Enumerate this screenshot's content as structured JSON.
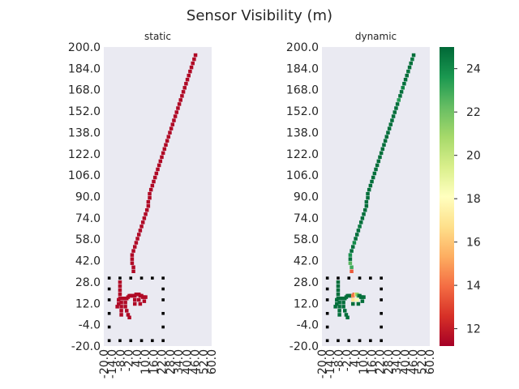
{
  "chart_data": {
    "type": "heatmap",
    "title": "Sensor Visibility (m)",
    "colormap": "RdYlGn",
    "colorbar": {
      "vmin": 11.2,
      "vmax": 25.0,
      "ticks": [
        "12",
        "14",
        "16",
        "18",
        "20",
        "22",
        "24"
      ]
    },
    "x_tick_labels": [
      "-20.0",
      "-14.0",
      "-8.0",
      "-2.0",
      "4.0",
      "10.0",
      "16.0",
      "22.0",
      "28.0",
      "34.0",
      "40.0",
      "46.0",
      "52.0",
      "60.0"
    ],
    "y_tick_labels": [
      "200.0",
      "184.0",
      "168.0",
      "152.0",
      "138.0",
      "122.0",
      "106.0",
      "90.0",
      "74.0",
      "58.0",
      "42.0",
      "28.0",
      "12.0",
      "-4.0",
      "-20.0"
    ],
    "background": "#eaeaf2",
    "marker_points": [
      [
        -16,
        30
      ],
      [
        -8,
        30
      ],
      [
        0,
        30
      ],
      [
        8,
        30
      ],
      [
        16,
        30
      ],
      [
        24,
        30
      ],
      [
        -16,
        22
      ],
      [
        24,
        22
      ],
      [
        -16,
        14
      ],
      [
        24,
        14
      ],
      [
        -16,
        4
      ],
      [
        24,
        4
      ],
      [
        -16,
        -6
      ],
      [
        24,
        -6
      ],
      [
        -16,
        -16
      ],
      [
        -8,
        -16
      ],
      [
        0,
        -16
      ],
      [
        8,
        -16
      ],
      [
        16,
        -16
      ],
      [
        24,
        -16
      ]
    ],
    "panels": [
      {
        "subtitle": "static",
        "cells": [
          [
            48,
            194,
            11.5
          ],
          [
            47,
            191,
            11.5
          ],
          [
            46,
            188,
            11.5
          ],
          [
            45,
            185,
            11.5
          ],
          [
            44,
            182,
            11.5
          ],
          [
            43,
            179,
            11.5
          ],
          [
            42,
            176,
            11.5
          ],
          [
            41,
            173,
            11.5
          ],
          [
            40,
            170,
            11.5
          ],
          [
            39,
            167,
            11.5
          ],
          [
            38,
            164,
            11.5
          ],
          [
            37,
            161,
            11.5
          ],
          [
            36,
            158,
            11.5
          ],
          [
            35,
            155,
            11.5
          ],
          [
            34,
            152,
            11.5
          ],
          [
            33,
            149,
            11.5
          ],
          [
            32,
            146,
            11.5
          ],
          [
            31,
            143,
            11.5
          ],
          [
            30,
            140,
            11.5
          ],
          [
            29,
            137,
            11.5
          ],
          [
            28,
            134,
            11.5
          ],
          [
            27,
            131,
            11.5
          ],
          [
            26,
            128,
            11.5
          ],
          [
            25,
            125,
            11.5
          ],
          [
            24,
            122,
            11.5
          ],
          [
            23,
            119,
            11.5
          ],
          [
            22,
            116,
            11.5
          ],
          [
            21,
            113,
            11.5
          ],
          [
            20,
            110,
            11.5
          ],
          [
            19,
            107,
            11.5
          ],
          [
            18,
            104,
            11.5
          ],
          [
            17,
            101,
            11.5
          ],
          [
            16,
            98,
            11.5
          ],
          [
            15,
            95,
            11.5
          ],
          [
            14,
            92,
            11.5
          ],
          [
            14,
            89,
            11.5
          ],
          [
            13,
            86,
            11.5
          ],
          [
            13,
            83,
            11.5
          ],
          [
            12,
            80,
            11.5
          ],
          [
            11,
            77,
            11.5
          ],
          [
            10,
            74,
            11.5
          ],
          [
            9,
            71,
            11.5
          ],
          [
            8,
            68,
            11.5
          ],
          [
            7,
            65,
            11.5
          ],
          [
            6,
            62,
            11.5
          ],
          [
            5,
            59,
            11.5
          ],
          [
            4,
            56,
            11.5
          ],
          [
            3,
            53,
            11.5
          ],
          [
            2,
            50,
            11.5
          ],
          [
            1,
            47,
            11.5
          ],
          [
            1,
            44,
            11.5
          ],
          [
            1,
            41,
            11.5
          ],
          [
            2,
            38,
            11.5
          ],
          [
            2,
            35,
            11.5
          ],
          [
            -8,
            27,
            11.5
          ],
          [
            -8,
            24,
            11.5
          ],
          [
            -8,
            21,
            11.5
          ],
          [
            -8,
            18,
            11.5
          ],
          [
            -8,
            15,
            11.5
          ],
          [
            -7,
            12,
            11.5
          ],
          [
            -7,
            9,
            11.5
          ],
          [
            -7,
            6,
            11.5
          ],
          [
            -7,
            3,
            11.5
          ],
          [
            -6,
            15,
            11.5
          ],
          [
            -5,
            15,
            11.5
          ],
          [
            -4,
            15,
            11.5
          ],
          [
            -3,
            15,
            11.5
          ],
          [
            -2,
            16,
            11.5
          ],
          [
            -1,
            17,
            11.5
          ],
          [
            0,
            17,
            11.5
          ],
          [
            1,
            17,
            11.5
          ],
          [
            2,
            17,
            11.5
          ],
          [
            3,
            17,
            11.5
          ],
          [
            4,
            18,
            11.5
          ],
          [
            5,
            18,
            11.5
          ],
          [
            6,
            18,
            11.5
          ],
          [
            7,
            17,
            11.5
          ],
          [
            8,
            17,
            11.5
          ],
          [
            9,
            16,
            11.5
          ],
          [
            10,
            16,
            11.5
          ],
          [
            11,
            16,
            11.5
          ],
          [
            -4,
            12,
            11.5
          ],
          [
            -4,
            9,
            11.5
          ],
          [
            -3,
            6,
            11.5
          ],
          [
            -2,
            3,
            11.5
          ],
          [
            -1,
            1,
            11.5
          ],
          [
            3,
            14,
            11.5
          ],
          [
            3,
            11,
            11.5
          ],
          [
            6,
            14,
            11.5
          ],
          [
            7,
            11,
            11.5
          ],
          [
            10,
            13,
            11.5
          ],
          [
            -9,
            14,
            11.5
          ],
          [
            -9,
            11,
            11.5
          ],
          [
            -10,
            9,
            11.5
          ]
        ]
      },
      {
        "subtitle": "dynamic",
        "cells": [
          [
            48,
            194,
            24.8
          ],
          [
            47,
            191,
            24.5
          ],
          [
            46,
            188,
            24.8
          ],
          [
            45,
            185,
            24.8
          ],
          [
            44,
            182,
            24.6
          ],
          [
            43,
            179,
            24.8
          ],
          [
            42,
            176,
            24.8
          ],
          [
            41,
            173,
            24.8
          ],
          [
            40,
            170,
            24.2
          ],
          [
            39,
            167,
            24.8
          ],
          [
            38,
            164,
            24.8
          ],
          [
            37,
            161,
            23.5
          ],
          [
            36,
            158,
            24.8
          ],
          [
            35,
            155,
            24.8
          ],
          [
            34,
            152,
            24.8
          ],
          [
            33,
            149,
            24.8
          ],
          [
            32,
            146,
            24.8
          ],
          [
            31,
            143,
            24.8
          ],
          [
            30,
            140,
            24.8
          ],
          [
            29,
            137,
            24.8
          ],
          [
            28,
            134,
            24.8
          ],
          [
            27,
            131,
            24.8
          ],
          [
            26,
            128,
            24.8
          ],
          [
            25,
            125,
            24.8
          ],
          [
            24,
            122,
            24.8
          ],
          [
            23,
            119,
            24.8
          ],
          [
            22,
            116,
            24.8
          ],
          [
            21,
            113,
            24.8
          ],
          [
            20,
            110,
            24.8
          ],
          [
            19,
            107,
            24.8
          ],
          [
            18,
            104,
            24.8
          ],
          [
            17,
            101,
            24.8
          ],
          [
            16,
            98,
            24.8
          ],
          [
            15,
            95,
            24.8
          ],
          [
            14,
            92,
            24.8
          ],
          [
            14,
            89,
            24.8
          ],
          [
            13,
            86,
            24.8
          ],
          [
            13,
            83,
            24.8
          ],
          [
            12,
            80,
            24.8
          ],
          [
            11,
            77,
            24.8
          ],
          [
            10,
            74,
            24.8
          ],
          [
            9,
            71,
            24.8
          ],
          [
            8,
            68,
            24.5
          ],
          [
            7,
            65,
            24.8
          ],
          [
            6,
            62,
            24.8
          ],
          [
            5,
            59,
            24.8
          ],
          [
            4,
            56,
            24.0
          ],
          [
            3,
            53,
            24.8
          ],
          [
            2,
            50,
            24.8
          ],
          [
            1,
            47,
            23.8
          ],
          [
            1,
            44,
            24.8
          ],
          [
            1,
            41,
            22.5
          ],
          [
            2,
            38,
            23.0
          ],
          [
            2,
            35,
            13.5
          ],
          [
            -8,
            27,
            24.8
          ],
          [
            -8,
            24,
            24.8
          ],
          [
            -8,
            21,
            24.8
          ],
          [
            -8,
            18,
            24.8
          ],
          [
            -8,
            15,
            24.8
          ],
          [
            -7,
            12,
            24.8
          ],
          [
            -7,
            9,
            24.8
          ],
          [
            -7,
            6,
            24.8
          ],
          [
            -7,
            3,
            24.8
          ],
          [
            -6,
            15,
            24.8
          ],
          [
            -5,
            15,
            24.8
          ],
          [
            -4,
            15,
            24.8
          ],
          [
            -3,
            15,
            24.8
          ],
          [
            -2,
            16,
            24.8
          ],
          [
            -1,
            17,
            24.8
          ],
          [
            0,
            17,
            24.8
          ],
          [
            1,
            17,
            24.8
          ],
          [
            2,
            17,
            24.8
          ],
          [
            3,
            17,
            14.5
          ],
          [
            4,
            18,
            13.5
          ],
          [
            5,
            18,
            16.0
          ],
          [
            6,
            18,
            21.0
          ],
          [
            7,
            17,
            23.0
          ],
          [
            8,
            17,
            24.8
          ],
          [
            9,
            16,
            24.8
          ],
          [
            10,
            16,
            24.8
          ],
          [
            11,
            16,
            24.8
          ],
          [
            -4,
            12,
            24.8
          ],
          [
            -4,
            9,
            24.8
          ],
          [
            -3,
            6,
            24.8
          ],
          [
            -2,
            3,
            24.8
          ],
          [
            -1,
            1,
            24.8
          ],
          [
            3,
            14,
            17.0
          ],
          [
            3,
            11,
            24.8
          ],
          [
            6,
            14,
            18.5
          ],
          [
            7,
            11,
            24.8
          ],
          [
            10,
            13,
            24.8
          ],
          [
            -9,
            14,
            24.8
          ],
          [
            -9,
            11,
            24.8
          ],
          [
            -10,
            9,
            24.8
          ]
        ]
      }
    ]
  }
}
